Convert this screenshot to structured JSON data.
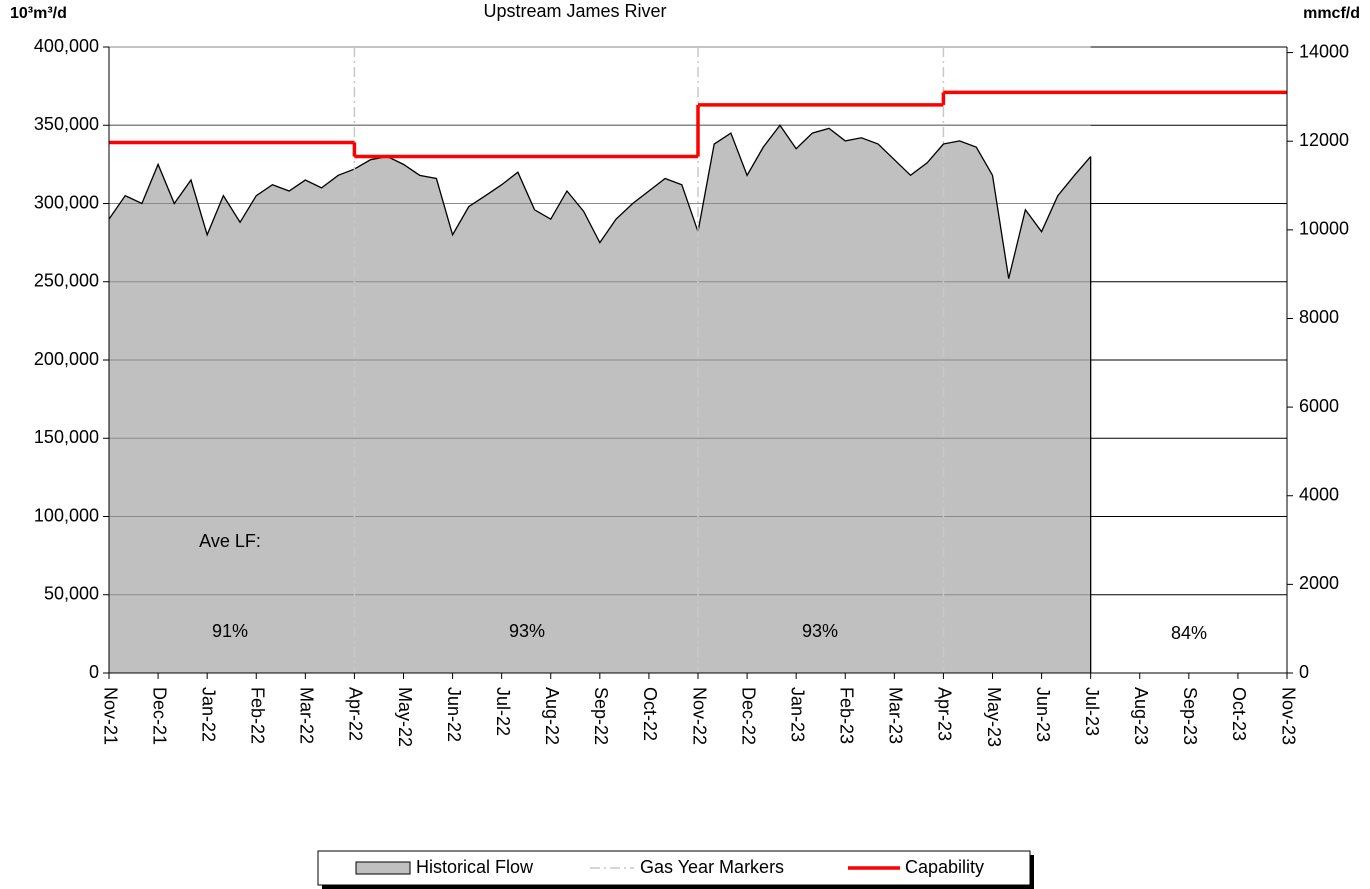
{
  "chart_data": {
    "type": "area",
    "title": "Upstream James River",
    "y_label": "10³m³/d",
    "y2_label": "mmcf/d",
    "xlim": [
      0,
      24
    ],
    "xticks": [
      {
        "value": 0,
        "label": "Nov-21"
      },
      {
        "value": 1,
        "label": "Dec-21"
      },
      {
        "value": 2,
        "label": "Jan-22"
      },
      {
        "value": 3,
        "label": "Feb-22"
      },
      {
        "value": 4,
        "label": "Mar-22"
      },
      {
        "value": 5,
        "label": "Apr-22"
      },
      {
        "value": 6,
        "label": "May-22"
      },
      {
        "value": 7,
        "label": "Jun-22"
      },
      {
        "value": 8,
        "label": "Jul-22"
      },
      {
        "value": 9,
        "label": "Aug-22"
      },
      {
        "value": 10,
        "label": "Sep-22"
      },
      {
        "value": 11,
        "label": "Oct-22"
      },
      {
        "value": 12,
        "label": "Nov-22"
      },
      {
        "value": 13,
        "label": "Dec-22"
      },
      {
        "value": 14,
        "label": "Jan-23"
      },
      {
        "value": 15,
        "label": "Feb-23"
      },
      {
        "value": 16,
        "label": "Mar-23"
      },
      {
        "value": 17,
        "label": "Apr-23"
      },
      {
        "value": 18,
        "label": "May-23"
      },
      {
        "value": 19,
        "label": "Jun-23"
      },
      {
        "value": 20,
        "label": "Jul-23"
      },
      {
        "value": 21,
        "label": "Aug-23"
      },
      {
        "value": 22,
        "label": "Sep-23"
      },
      {
        "value": 23,
        "label": "Oct-23"
      },
      {
        "value": 24,
        "label": "Nov-23"
      }
    ],
    "ylim": [
      0,
      400000
    ],
    "yticks": [
      {
        "value": 0,
        "label": "0"
      },
      {
        "value": 50000,
        "label": "50,000"
      },
      {
        "value": 100000,
        "label": "100,000"
      },
      {
        "value": 150000,
        "label": "150,000"
      },
      {
        "value": 200000,
        "label": "200,000"
      },
      {
        "value": 250000,
        "label": "250,000"
      },
      {
        "value": 300000,
        "label": "300,000"
      },
      {
        "value": 350000,
        "label": "350,000"
      },
      {
        "value": 400000,
        "label": "400,000"
      }
    ],
    "y2lim": [
      0,
      14126
    ],
    "y2ticks": [
      0,
      2000,
      4000,
      6000,
      8000,
      10000,
      12000,
      14000
    ],
    "grid": true,
    "series": [
      {
        "name": "Historical Flow",
        "type": "area",
        "color": "#c0c0c0",
        "x": [
          0,
          0.33,
          0.67,
          1,
          1.33,
          1.67,
          2,
          2.33,
          2.67,
          3,
          3.33,
          3.67,
          4,
          4.33,
          4.67,
          5,
          5.33,
          5.67,
          6,
          6.33,
          6.67,
          7,
          7.33,
          7.67,
          8,
          8.33,
          8.67,
          9,
          9.33,
          9.67,
          10,
          10.33,
          10.67,
          11,
          11.33,
          11.67,
          12,
          12.33,
          12.67,
          13,
          13.33,
          13.67,
          14,
          14.33,
          14.67,
          15,
          15.33,
          15.67,
          16,
          16.33,
          16.67,
          17,
          17.33,
          17.67,
          18,
          18.33,
          18.67,
          19,
          19.33,
          19.67,
          20
        ],
        "values": [
          290000,
          305000,
          300000,
          325000,
          300000,
          315000,
          280000,
          305000,
          288000,
          305000,
          312000,
          308000,
          315000,
          310000,
          318000,
          322000,
          328000,
          330000,
          325000,
          318000,
          316000,
          280000,
          298000,
          305000,
          312000,
          320000,
          296000,
          290000,
          308000,
          295000,
          275000,
          290000,
          300000,
          308000,
          316000,
          312000,
          282000,
          338000,
          345000,
          318000,
          336000,
          350000,
          335000,
          345000,
          348000,
          340000,
          342000,
          338000,
          328000,
          318000,
          326000,
          338000,
          340000,
          336000,
          318000,
          252000,
          296000,
          282000,
          305000,
          318000,
          330000
        ]
      },
      {
        "name": "Gas Year Markers",
        "type": "vline",
        "color": "#c8c8c8",
        "x": [
          5,
          12,
          17
        ]
      },
      {
        "name": "Capability",
        "type": "step",
        "color": "#ff0000",
        "x": [
          0,
          5,
          12,
          17
        ],
        "values": [
          339000,
          330000,
          363000,
          371000
        ]
      }
    ],
    "annotations": [
      "Ave LF:",
      "91%",
      "93%",
      "93%",
      "84%"
    ]
  }
}
